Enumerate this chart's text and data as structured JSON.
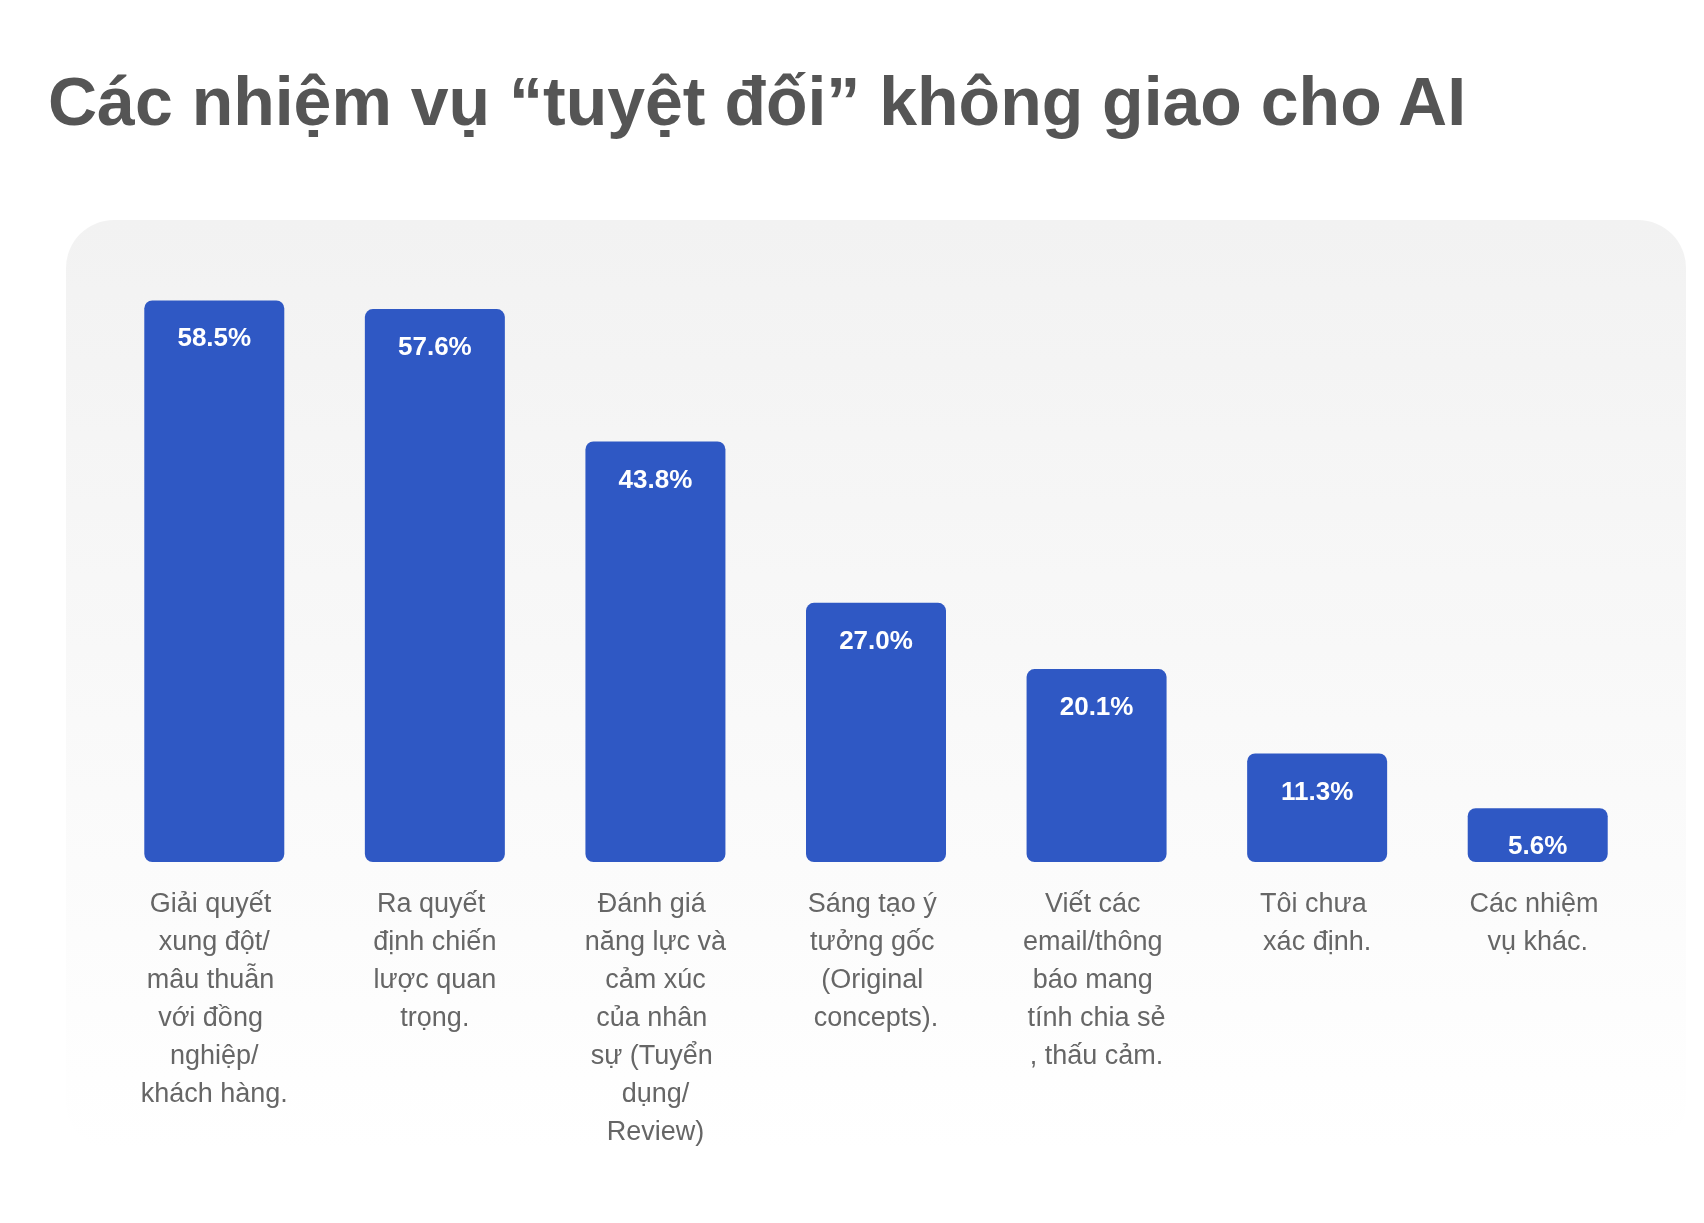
{
  "chart_data": {
    "type": "bar",
    "title": "Các nhiệm vụ “tuyệt đối” không giao cho AI",
    "categories": [
      "Giải quyết xung đột/mâu thuẫn với đồng nghiệp/khách hàng.",
      "Ra quyết định chiến lược quan trọng.",
      "Đánh giá năng lực và cảm xúc của nhân sự (Tuyển dụng/Review)",
      "Sáng tạo ý tưởng gốc (Original concepts).",
      "Viết các email/thông báo mang tính chia sẻ, thấu cảm.",
      "Tôi chưa xác định.",
      "Các nhiệm vụ khác."
    ],
    "values": [
      58.5,
      57.6,
      43.8,
      27.0,
      20.1,
      11.3,
      5.6
    ],
    "value_labels": [
      "58.5%",
      "57.6%",
      "43.8%",
      "27.0%",
      "20.1%",
      "11.3%",
      "5.6%"
    ],
    "color": "#2f58c4"
  }
}
